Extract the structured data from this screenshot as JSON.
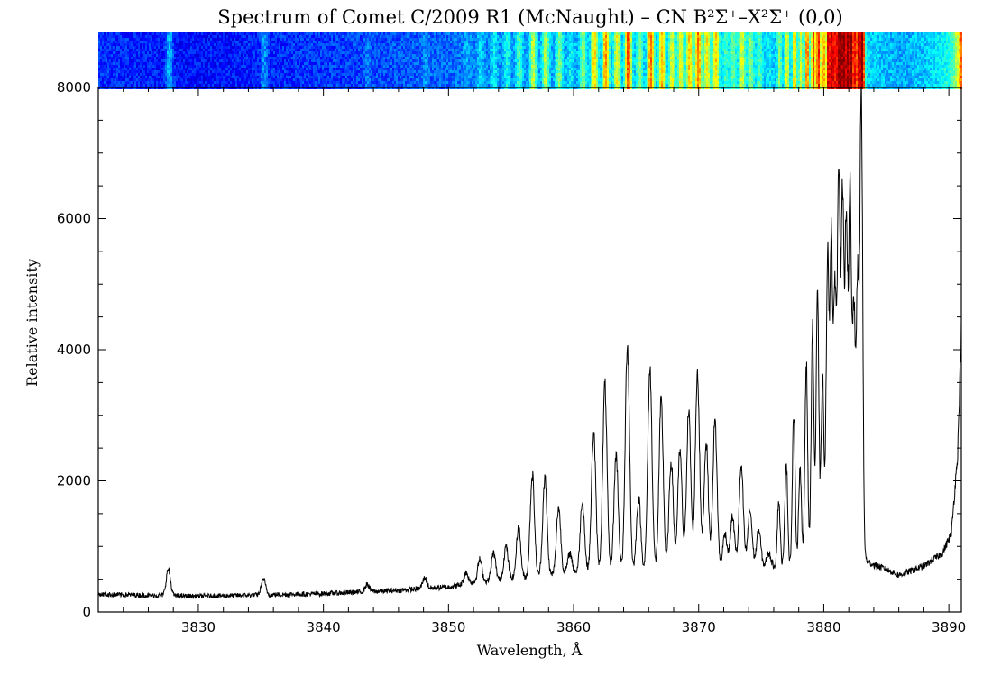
{
  "chart_data": {
    "type": "line",
    "title": "Spectrum of Comet C/2009 R1 (McNaught) – CN B²Σ⁺–X²Σ⁺ (0,0)",
    "xlabel": "Wavelength, Å",
    "ylabel": "Relative intensity",
    "xlim": [
      3822,
      3891
    ],
    "ylim": [
      0,
      8000
    ],
    "x_ticks": [
      3830,
      3840,
      3850,
      3860,
      3870,
      3880,
      3890
    ],
    "y_ticks": [
      0,
      2000,
      4000,
      6000,
      8000
    ],
    "grid": false,
    "legend": "none",
    "image_strip": {
      "description_colormap": "jet",
      "colors": [
        "#1c2fa8",
        "#2a6ad8",
        "#3cc6e8",
        "#66e08a",
        "#e8e040",
        "#e83020"
      ]
    },
    "series": [
      {
        "line_color": "#000000",
        "baseline": [
          [
            3822,
            270
          ],
          [
            3830,
            240
          ],
          [
            3840,
            280
          ],
          [
            3845,
            320
          ],
          [
            3850,
            380
          ],
          [
            3852,
            450
          ],
          [
            3855,
            500
          ],
          [
            3860,
            600
          ],
          [
            3865,
            620
          ],
          [
            3870,
            640
          ],
          [
            3875,
            680
          ],
          [
            3878,
            720
          ],
          [
            3880,
            820
          ],
          [
            3883,
            900
          ],
          [
            3883.6,
            750
          ],
          [
            3885,
            650
          ],
          [
            3886,
            560
          ],
          [
            3888,
            700
          ],
          [
            3889.5,
            900
          ],
          [
            3890.2,
            1200
          ],
          [
            3890.7,
            2400
          ],
          [
            3891,
            4300
          ]
        ],
        "peaks": [
          [
            3827.6,
            650
          ],
          [
            3835.2,
            500
          ],
          [
            3843.5,
            420
          ],
          [
            3848.1,
            520
          ],
          [
            3851.4,
            600
          ],
          [
            3852.5,
            800
          ],
          [
            3853.6,
            900
          ],
          [
            3854.6,
            1000
          ],
          [
            3855.6,
            1300
          ],
          [
            3856.7,
            2100
          ],
          [
            3857.7,
            2050
          ],
          [
            3858.8,
            1600
          ],
          [
            3859.7,
            900
          ],
          [
            3860.7,
            1700
          ],
          [
            3861.6,
            2750
          ],
          [
            3862.5,
            3450
          ],
          [
            3863.4,
            2400
          ],
          [
            3864.3,
            4100
          ],
          [
            3865.2,
            1750
          ],
          [
            3866.1,
            3700
          ],
          [
            3867.0,
            3200
          ],
          [
            3867.8,
            2300
          ],
          [
            3868.5,
            2450
          ],
          [
            3869.2,
            3050
          ],
          [
            3869.9,
            3650
          ],
          [
            3870.6,
            2600
          ],
          [
            3871.3,
            2900
          ],
          [
            3872.1,
            1200
          ],
          [
            3872.7,
            1450
          ],
          [
            3873.4,
            2200
          ],
          [
            3874.1,
            1550
          ],
          [
            3874.8,
            1250
          ],
          [
            3875.6,
            900
          ],
          [
            3876.4,
            1700
          ],
          [
            3877.0,
            2300
          ],
          [
            3877.6,
            3000
          ],
          [
            3878.1,
            2200
          ],
          [
            3878.6,
            3800
          ],
          [
            3879.1,
            4300
          ],
          [
            3879.5,
            4800
          ],
          [
            3879.9,
            3600
          ],
          [
            3880.3,
            5400
          ],
          [
            3880.6,
            5700
          ],
          [
            3880.9,
            4900
          ],
          [
            3881.2,
            6800
          ],
          [
            3881.5,
            6200
          ],
          [
            3881.8,
            6000
          ],
          [
            3882.1,
            6300
          ],
          [
            3882.4,
            4600
          ],
          [
            3882.7,
            5000
          ],
          [
            3883.0,
            7950
          ]
        ]
      }
    ]
  }
}
